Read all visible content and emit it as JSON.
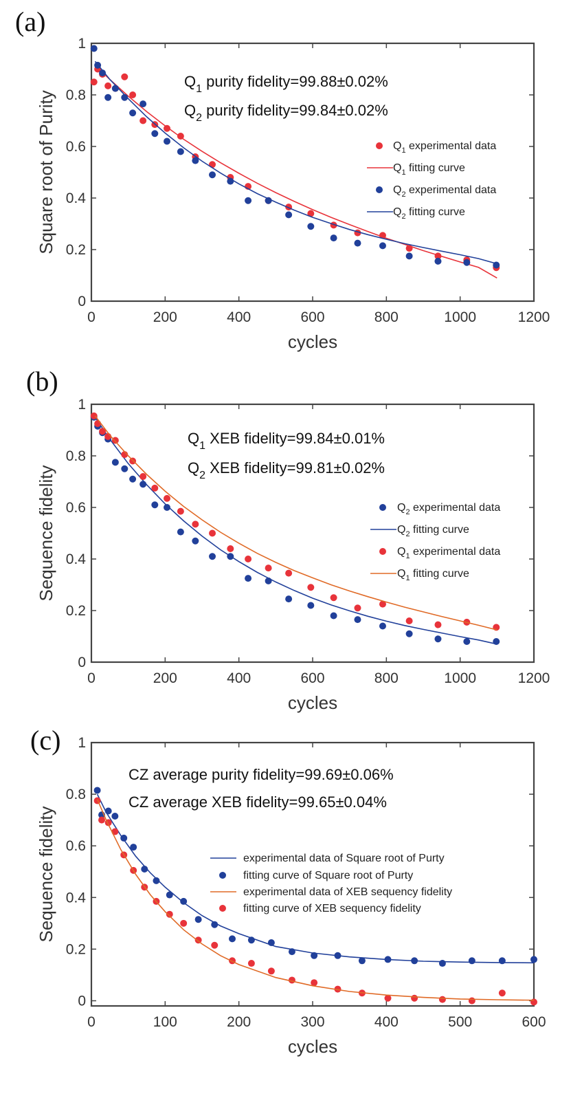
{
  "colors": {
    "red": "#e8333a",
    "blue": "#21409a",
    "orange": "#e06a26"
  },
  "chart_data": [
    {
      "type": "scatter",
      "panel_label": "(a)",
      "xlabel": "cycles",
      "ylabel": "Square root of Purity",
      "xlim": [
        0,
        1200
      ],
      "ylim": [
        0,
        1
      ],
      "xticks": [
        0,
        200,
        400,
        600,
        800,
        1000,
        1200
      ],
      "yticks": [
        0,
        0.2,
        0.4,
        0.6,
        0.8,
        1
      ],
      "ytick_labels": [
        "0",
        "0.2",
        "0.4",
        "0.6",
        "0.8",
        "1"
      ],
      "annotations": [
        {
          "main": "Q",
          "sub": "1",
          "rest": " purity fidelity=99.88±0.02%"
        },
        {
          "main": "Q",
          "sub": "2",
          "rest": " purity fidelity=99.84±0.02%"
        }
      ],
      "legend": [
        {
          "kind": "dot",
          "color": "red",
          "pre": "Q",
          "sub": "1",
          "text": " experimental data"
        },
        {
          "kind": "line",
          "color": "red",
          "pre": "Q",
          "sub": "1",
          "text": " fitting curve"
        },
        {
          "kind": "dot",
          "color": "blue",
          "pre": "Q",
          "sub": "2",
          "text": " experimental data"
        },
        {
          "kind": "line",
          "color": "blue",
          "pre": "Q",
          "sub": "2",
          "text": " fitting curve"
        }
      ],
      "series": [
        {
          "name": "Q1 experimental data",
          "kind": "dot",
          "color": "red",
          "x": [
            7,
            17,
            30,
            45,
            65,
            90,
            112,
            140,
            172,
            205,
            242,
            282,
            328,
            377,
            425,
            480,
            535,
            595,
            657,
            722,
            790,
            862,
            940,
            1018,
            1098
          ],
          "y": [
            0.85,
            0.9,
            0.88,
            0.835,
            0.825,
            0.87,
            0.8,
            0.7,
            0.685,
            0.67,
            0.64,
            0.56,
            0.53,
            0.48,
            0.445,
            0.39,
            0.365,
            0.34,
            0.295,
            0.265,
            0.255,
            0.205,
            0.175,
            0.16,
            0.13
          ]
        },
        {
          "name": "Q1 fitting curve",
          "kind": "curve",
          "color": "red",
          "x": [
            10,
            50,
            100,
            150,
            200,
            250,
            300,
            350,
            400,
            450,
            500,
            550,
            600,
            650,
            700,
            750,
            800,
            850,
            900,
            950,
            1000,
            1050,
            1100
          ],
          "y": [
            0.915,
            0.86,
            0.795,
            0.735,
            0.68,
            0.628,
            0.581,
            0.537,
            0.496,
            0.457,
            0.421,
            0.387,
            0.355,
            0.325,
            0.297,
            0.27,
            0.244,
            0.22,
            0.196,
            0.174,
            0.152,
            0.131,
            0.09
          ]
        },
        {
          "name": "Q2 experimental data",
          "kind": "dot",
          "color": "blue",
          "x": [
            7,
            17,
            30,
            45,
            65,
            90,
            112,
            140,
            172,
            205,
            242,
            282,
            328,
            377,
            425,
            480,
            535,
            595,
            657,
            722,
            790,
            862,
            940,
            1018,
            1098
          ],
          "y": [
            0.98,
            0.915,
            0.885,
            0.79,
            0.825,
            0.79,
            0.73,
            0.765,
            0.65,
            0.62,
            0.58,
            0.545,
            0.49,
            0.465,
            0.39,
            0.39,
            0.335,
            0.29,
            0.245,
            0.225,
            0.215,
            0.175,
            0.155,
            0.15,
            0.14
          ]
        },
        {
          "name": "Q2 fitting curve",
          "kind": "curve",
          "color": "blue",
          "x": [
            10,
            50,
            100,
            150,
            200,
            250,
            300,
            350,
            400,
            450,
            500,
            550,
            600,
            650,
            700,
            750,
            800,
            850,
            900,
            950,
            1000,
            1050,
            1100
          ],
          "y": [
            0.93,
            0.86,
            0.785,
            0.715,
            0.652,
            0.595,
            0.543,
            0.497,
            0.455,
            0.417,
            0.384,
            0.353,
            0.325,
            0.301,
            0.278,
            0.258,
            0.24,
            0.223,
            0.208,
            0.194,
            0.18,
            0.165,
            0.145
          ]
        }
      ]
    },
    {
      "type": "scatter",
      "panel_label": "(b)",
      "xlabel": "cycles",
      "ylabel": "Sequence fidelity",
      "xlim": [
        0,
        1200
      ],
      "ylim": [
        0,
        1
      ],
      "xticks": [
        0,
        200,
        400,
        600,
        800,
        1000,
        1200
      ],
      "yticks": [
        0,
        0.2,
        0.4,
        0.6,
        0.8,
        1
      ],
      "ytick_labels": [
        "0",
        "0.2",
        "0.4",
        "0.6",
        "0.8",
        "1"
      ],
      "annotations": [
        {
          "main": "Q",
          "sub": "1",
          "rest": " XEB fidelity=99.84±0.01%"
        },
        {
          "main": "Q",
          "sub": "2",
          "rest": " XEB fidelity=99.81±0.02%"
        }
      ],
      "legend": [
        {
          "kind": "dot",
          "color": "blue",
          "pre": "Q",
          "sub": "2",
          "text": " experimental data"
        },
        {
          "kind": "line",
          "color": "blue",
          "pre": "Q",
          "sub": "2",
          "text": " fitting curve"
        },
        {
          "kind": "dot",
          "color": "red",
          "pre": "Q",
          "sub": "1",
          "text": " experimental data"
        },
        {
          "kind": "line",
          "color": "orange",
          "pre": "Q",
          "sub": "1",
          "text": " fitting curve"
        }
      ],
      "series": [
        {
          "name": "Q2 experimental data",
          "kind": "dot",
          "color": "blue",
          "x": [
            7,
            17,
            30,
            45,
            65,
            90,
            112,
            140,
            172,
            205,
            242,
            282,
            328,
            377,
            425,
            480,
            535,
            595,
            657,
            722,
            790,
            862,
            940,
            1018,
            1098
          ],
          "y": [
            0.95,
            0.915,
            0.89,
            0.865,
            0.775,
            0.75,
            0.71,
            0.69,
            0.61,
            0.6,
            0.505,
            0.47,
            0.41,
            0.41,
            0.325,
            0.315,
            0.245,
            0.22,
            0.18,
            0.165,
            0.14,
            0.11,
            0.09,
            0.08,
            0.08
          ]
        },
        {
          "name": "Q2 fitting curve",
          "kind": "curve",
          "color": "blue",
          "x": [
            10,
            50,
            100,
            150,
            200,
            250,
            300,
            350,
            400,
            450,
            500,
            550,
            600,
            650,
            700,
            750,
            800,
            850,
            900,
            950,
            1000,
            1050,
            1100
          ],
          "y": [
            0.95,
            0.865,
            0.77,
            0.688,
            0.614,
            0.548,
            0.489,
            0.436,
            0.39,
            0.348,
            0.311,
            0.278,
            0.248,
            0.222,
            0.199,
            0.178,
            0.159,
            0.142,
            0.127,
            0.113,
            0.099,
            0.086,
            0.07
          ]
        },
        {
          "name": "Q1 experimental data",
          "kind": "dot",
          "color": "red",
          "x": [
            7,
            17,
            30,
            45,
            65,
            90,
            112,
            140,
            172,
            205,
            242,
            282,
            328,
            377,
            425,
            480,
            535,
            595,
            657,
            722,
            790,
            862,
            940,
            1018,
            1098
          ],
          "y": [
            0.955,
            0.925,
            0.895,
            0.875,
            0.86,
            0.805,
            0.78,
            0.72,
            0.675,
            0.635,
            0.585,
            0.535,
            0.5,
            0.44,
            0.4,
            0.365,
            0.345,
            0.29,
            0.25,
            0.21,
            0.225,
            0.16,
            0.145,
            0.155,
            0.135
          ]
        },
        {
          "name": "Q1 fitting curve",
          "kind": "curve",
          "color": "orange",
          "x": [
            10,
            50,
            100,
            150,
            200,
            250,
            300,
            350,
            400,
            450,
            500,
            550,
            600,
            650,
            700,
            750,
            800,
            850,
            900,
            950,
            1000,
            1050,
            1100
          ],
          "y": [
            0.955,
            0.88,
            0.8,
            0.728,
            0.663,
            0.604,
            0.552,
            0.504,
            0.461,
            0.422,
            0.387,
            0.355,
            0.327,
            0.3,
            0.276,
            0.254,
            0.233,
            0.213,
            0.195,
            0.177,
            0.16,
            0.143,
            0.125
          ]
        }
      ]
    },
    {
      "type": "scatter",
      "panel_label": "(c)",
      "xlabel": "cycles",
      "ylabel": "Sequence fidelity",
      "xlim": [
        0,
        600
      ],
      "ylim": [
        -0.02,
        1
      ],
      "xticks": [
        0,
        100,
        200,
        300,
        400,
        500,
        600
      ],
      "yticks": [
        0,
        0.2,
        0.4,
        0.6,
        0.8,
        1
      ],
      "ytick_labels": [
        "0",
        "0.2",
        "0.4",
        "0.6",
        "0.8",
        "1"
      ],
      "annotations": [
        {
          "main": "CZ average purity fidelity=99.69±0.06%",
          "sub": "",
          "rest": ""
        },
        {
          "main": "CZ average XEB fidelity=99.65±0.04%",
          "sub": "",
          "rest": ""
        }
      ],
      "legend": [
        {
          "kind": "line",
          "color": "blue",
          "pre": "",
          "sub": "",
          "text": "experimental data of Square root of Purty"
        },
        {
          "kind": "dot",
          "color": "blue",
          "pre": "",
          "sub": "",
          "text": "fitting curve of Square root of Purty"
        },
        {
          "kind": "line",
          "color": "orange",
          "pre": "",
          "sub": "",
          "text": "experimental data of XEB sequency fidelity"
        },
        {
          "kind": "dot",
          "color": "red",
          "pre": "",
          "sub": "",
          "text": "fitting curve of XEB sequency fidelity"
        }
      ],
      "series": [
        {
          "name": "Square root of Purty data",
          "kind": "dot",
          "color": "blue",
          "x": [
            8,
            14,
            23,
            32,
            44,
            57,
            72,
            88,
            106,
            125,
            145,
            167,
            191,
            217,
            244,
            272,
            302,
            334,
            367,
            402,
            438,
            476,
            516,
            557,
            600
          ],
          "y": [
            0.815,
            0.72,
            0.735,
            0.715,
            0.63,
            0.595,
            0.51,
            0.465,
            0.41,
            0.385,
            0.315,
            0.295,
            0.24,
            0.235,
            0.225,
            0.19,
            0.175,
            0.175,
            0.155,
            0.16,
            0.155,
            0.145,
            0.155,
            0.155,
            0.16
          ]
        },
        {
          "name": "Square root of Purty curve",
          "kind": "curve",
          "color": "blue",
          "x": [
            8,
            20,
            40,
            60,
            80,
            100,
            125,
            150,
            175,
            200,
            250,
            300,
            350,
            400,
            450,
            500,
            550,
            600
          ],
          "y": [
            0.8,
            0.73,
            0.64,
            0.56,
            0.495,
            0.44,
            0.38,
            0.33,
            0.29,
            0.26,
            0.21,
            0.185,
            0.17,
            0.16,
            0.153,
            0.15,
            0.148,
            0.147
          ]
        },
        {
          "name": "XEB sequency fidelity data",
          "kind": "dot",
          "color": "red",
          "x": [
            8,
            14,
            23,
            32,
            44,
            57,
            72,
            88,
            106,
            125,
            145,
            167,
            191,
            217,
            244,
            272,
            302,
            334,
            367,
            402,
            438,
            476,
            516,
            557,
            600
          ],
          "y": [
            0.775,
            0.7,
            0.69,
            0.655,
            0.565,
            0.505,
            0.44,
            0.385,
            0.335,
            0.3,
            0.235,
            0.215,
            0.155,
            0.145,
            0.115,
            0.08,
            0.07,
            0.045,
            0.03,
            0.01,
            0.01,
            0.005,
            0.0,
            0.03,
            -0.005
          ]
        },
        {
          "name": "XEB sequency fidelity curve",
          "kind": "curve",
          "color": "orange",
          "x": [
            8,
            20,
            40,
            60,
            80,
            100,
            125,
            150,
            175,
            200,
            250,
            300,
            350,
            400,
            450,
            500,
            550,
            600
          ],
          "y": [
            0.78,
            0.7,
            0.585,
            0.49,
            0.41,
            0.345,
            0.275,
            0.22,
            0.175,
            0.14,
            0.09,
            0.058,
            0.036,
            0.022,
            0.013,
            0.007,
            0.004,
            0.002
          ]
        }
      ]
    }
  ]
}
